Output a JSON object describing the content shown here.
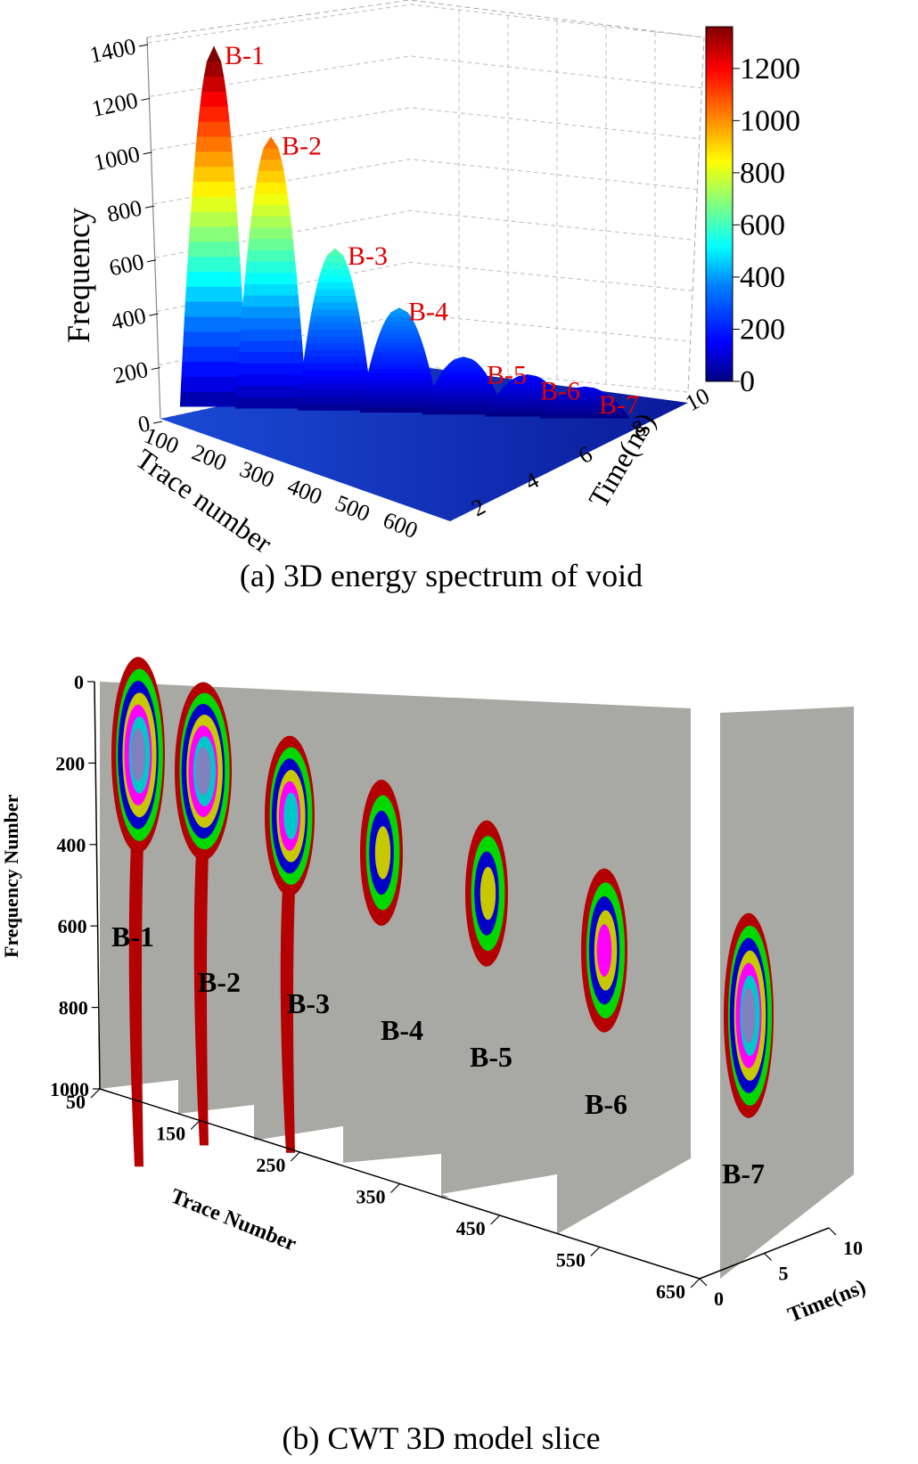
{
  "figure": {
    "caption_a": "(a) 3D energy spectrum of void",
    "caption_b": "(b) CWT 3D model slice"
  },
  "chart_data": [
    {
      "type": "surface3d",
      "panel": "a",
      "title": "(a) 3D energy spectrum of void",
      "zlabel": "Frequency",
      "xlabel": "Trace number",
      "ylabel": "Time(ns)",
      "zticks": [
        "0",
        "200",
        "400",
        "600",
        "800",
        "1000",
        "1200",
        "1400"
      ],
      "xticks": [
        "100",
        "200",
        "300",
        "400",
        "500",
        "600"
      ],
      "yticks": [
        "2",
        "4",
        "6",
        "8",
        "10"
      ],
      "zlim": [
        0,
        1400
      ],
      "xlim": [
        50,
        650
      ],
      "ylim": [
        0,
        10
      ],
      "colorbar": {
        "ticks": [
          "0",
          "200",
          "400",
          "600",
          "800",
          "1000",
          "1200"
        ],
        "range": [
          0,
          1360
        ]
      },
      "colors": [
        "#00007f",
        "#0000ff",
        "#0080ff",
        "#00ffff",
        "#80ff80",
        "#ffff00",
        "#ff8000",
        "#ff0000",
        "#7f0000"
      ],
      "peaks": [
        {
          "label": "B-1",
          "trace": 100,
          "value": 1380
        },
        {
          "label": "B-2",
          "trace": 180,
          "value": 1040
        },
        {
          "label": "B-3",
          "trace": 270,
          "value": 620
        },
        {
          "label": "B-4",
          "trace": 360,
          "value": 400
        },
        {
          "label": "B-5",
          "trace": 450,
          "value": 220
        },
        {
          "label": "B-6",
          "trace": 540,
          "value": 160
        },
        {
          "label": "B-7",
          "trace": 620,
          "value": 120
        }
      ]
    },
    {
      "type": "slice3d",
      "panel": "b",
      "title": "(b) CWT 3D model slice",
      "zlabel": "Frequency Number",
      "xlabel": "Trace Number",
      "ylabel": "Time(ns)",
      "zticks": [
        "0",
        "200",
        "400",
        "600",
        "800",
        "1000"
      ],
      "xticks": [
        "50",
        "150",
        "250",
        "350",
        "450",
        "550",
        "650"
      ],
      "yticks": [
        "0",
        "5",
        "10"
      ],
      "zlim": [
        0,
        1000
      ],
      "slice_color": "#a8a8a4",
      "ring_colors": [
        "#b40000",
        "#00d800",
        "#0000c8",
        "#c8c800",
        "#ff00ff",
        "#00c8c8",
        "#8080c0"
      ],
      "slices": [
        {
          "label": "B-1",
          "trace": 50,
          "center_freq": 180
        },
        {
          "label": "B-2",
          "trace": 150,
          "center_freq": 220
        },
        {
          "label": "B-3",
          "trace": 250,
          "center_freq": 330
        },
        {
          "label": "B-4",
          "trace": 350,
          "center_freq": 420
        },
        {
          "label": "B-5",
          "trace": 450,
          "center_freq": 520
        },
        {
          "label": "B-6",
          "trace": 550,
          "center_freq": 660
        },
        {
          "label": "B-7",
          "trace": 650,
          "center_freq": 820
        }
      ]
    }
  ]
}
